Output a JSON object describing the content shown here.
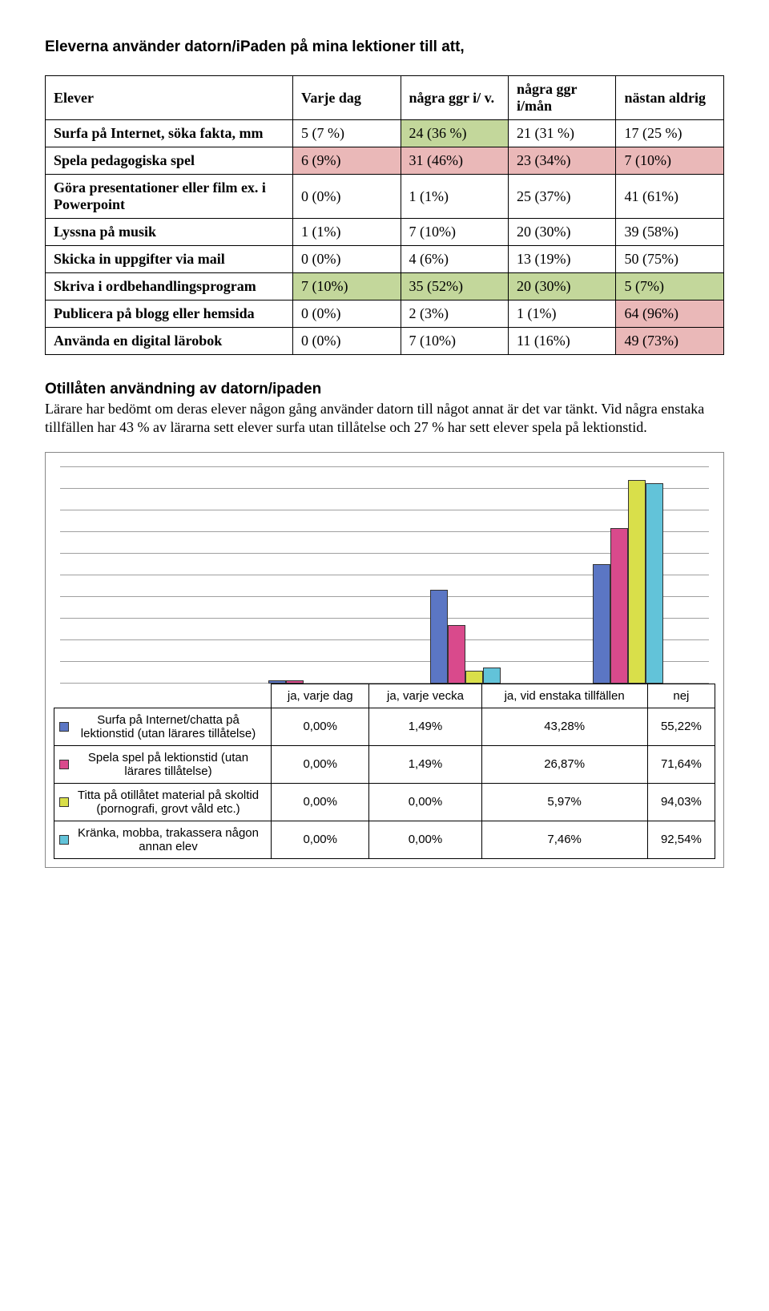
{
  "title": "Eleverna använder datorn/iPaden på mina lektioner till att,",
  "table1": {
    "columns": [
      "Elever",
      "Varje dag",
      "några ggr i/ v.",
      "några ggr i/mån",
      "nästan aldrig"
    ],
    "rows": [
      {
        "label": "Surfa på Internet, söka fakta, mm",
        "cells": [
          {
            "text": "5 (7 %)"
          },
          {
            "text": "24 (36 %)",
            "bg": "#c3d79b"
          },
          {
            "text": "21 (31 %)"
          },
          {
            "text": "17 (25 %)"
          }
        ]
      },
      {
        "label": "Spela pedagogiska spel",
        "cells": [
          {
            "text": "6 (9%)",
            "bg": "#eab8b8"
          },
          {
            "text": "31 (46%)",
            "bg": "#eab8b8"
          },
          {
            "text": "23 (34%)",
            "bg": "#eab8b8"
          },
          {
            "text": "7 (10%)",
            "bg": "#eab8b8"
          }
        ]
      },
      {
        "label": "Göra presentationer eller film ex. i Powerpoint",
        "cells": [
          {
            "text": "0 (0%)"
          },
          {
            "text": "1 (1%)"
          },
          {
            "text": "25 (37%)"
          },
          {
            "text": "41 (61%)"
          }
        ]
      },
      {
        "label": "Lyssna på musik",
        "cells": [
          {
            "text": "1 (1%)"
          },
          {
            "text": "7 (10%)"
          },
          {
            "text": "20 (30%)"
          },
          {
            "text": "39 (58%)"
          }
        ]
      },
      {
        "label": "Skicka in uppgifter via mail",
        "cells": [
          {
            "text": "0 (0%)"
          },
          {
            "text": "4 (6%)"
          },
          {
            "text": "13 (19%)"
          },
          {
            "text": "50 (75%)"
          }
        ]
      },
      {
        "label": "Skriva i ordbehandlingsprogram",
        "cells": [
          {
            "text": "7 (10%)",
            "bg": "#c3d79b"
          },
          {
            "text": "35 (52%)",
            "bg": "#c3d79b"
          },
          {
            "text": "20 (30%)",
            "bg": "#c3d79b"
          },
          {
            "text": "5 (7%)",
            "bg": "#c3d79b"
          }
        ]
      },
      {
        "label": "Publicera på blogg eller hemsida",
        "cells": [
          {
            "text": "0 (0%)"
          },
          {
            "text": "2 (3%)"
          },
          {
            "text": "1 (1%)"
          },
          {
            "text": "64 (96%)",
            "bg": "#eab8b8"
          }
        ]
      },
      {
        "label": "Använda en digital lärobok",
        "cells": [
          {
            "text": "0 (0%)"
          },
          {
            "text": "7 (10%)"
          },
          {
            "text": "11 (16%)"
          },
          {
            "text": "49 (73%)",
            "bg": "#eab8b8"
          }
        ]
      }
    ]
  },
  "section2": {
    "heading": "Otillåten användning av datorn/ipaden",
    "paragraph": "Lärare har bedömt om deras elever någon gång använder datorn till något annat är det var tänkt. Vid några enstaka tillfällen har 43 % av lärarna sett elever surfa utan tillåtelse och 27 % har sett elever spela på lektionstid."
  },
  "chart": {
    "type": "bar",
    "y_max": 100,
    "grid_lines": 10,
    "grid_color": "#a0a0a0",
    "bar_border_color": "#333333",
    "categories": [
      "ja, varje dag",
      "ja, varje vecka",
      "ja, vid enstaka tillfällen",
      "nej"
    ],
    "series": [
      {
        "label": "Surfa på Internet/chatta på lektionstid (utan lärares tillåtelse)",
        "color": "#5b76c4",
        "values": [
          0.0,
          1.49,
          43.28,
          55.22
        ],
        "display": [
          "0,00%",
          "1,49%",
          "43,28%",
          "55,22%"
        ]
      },
      {
        "label": "Spela spel på lektionstid (utan lärares tillåtelse)",
        "color": "#d94a8c",
        "values": [
          0.0,
          1.49,
          26.87,
          71.64
        ],
        "display": [
          "0,00%",
          "1,49%",
          "26,87%",
          "71,64%"
        ]
      },
      {
        "label": "Titta på otillåtet material på skoltid (pornografi, grovt våld etc.)",
        "color": "#d9df4a",
        "values": [
          0.0,
          0.0,
          5.97,
          94.03
        ],
        "display": [
          "0,00%",
          "0,00%",
          "5,97%",
          "94,03%"
        ]
      },
      {
        "label": "Kränka, mobba, trakassera någon annan elev",
        "color": "#62c3d9",
        "values": [
          0.0,
          0.0,
          7.46,
          92.54
        ],
        "display": [
          "0,00%",
          "0,00%",
          "7,46%",
          "92,54%"
        ]
      }
    ]
  }
}
